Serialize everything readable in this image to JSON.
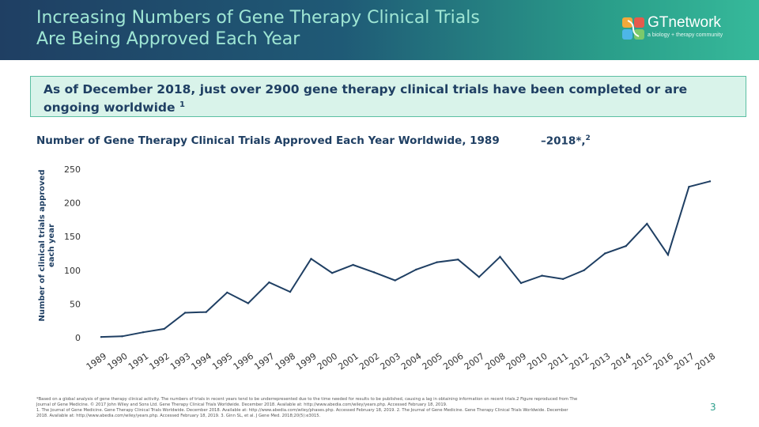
{
  "header": {
    "title_line1": "Increasing Numbers of Gene Therapy Clinical Trials",
    "title_line2": "Are Being Approved Each Year",
    "logo_text": "GTnetwork",
    "logo_tagline": "a biology + therapy community",
    "colors": {
      "dark": "#1f3f63",
      "teal": "#36b99a",
      "title": "#9fe6d4"
    }
  },
  "callout": {
    "text": "As of December 2018, just over 2900 gene therapy clinical trials have been completed or are ongoing worldwide",
    "sup": "1"
  },
  "chart_title": {
    "main": "Number of Gene Therapy Clinical Trials Approved Each Year Worldwide, 1989",
    "end": "–2018*,",
    "sup": "2"
  },
  "chart_data": {
    "type": "line",
    "title": "Number of Gene Therapy Clinical Trials Approved Each Year Worldwide, 1989–2018*,2",
    "xlabel": "",
    "ylabel": "Number of clinical trials approved each year",
    "ylim": [
      0,
      250
    ],
    "yticks": [
      0,
      50,
      100,
      150,
      200,
      250
    ],
    "grid": false,
    "categories": [
      "1989",
      "1990",
      "1991",
      "1992",
      "1993",
      "1994",
      "1995",
      "1996",
      "1997",
      "1998",
      "1999",
      "2000",
      "2001",
      "2002",
      "2003",
      "2004",
      "2005",
      "2006",
      "2007",
      "2008",
      "2009",
      "2010",
      "2011",
      "2012",
      "2013",
      "2014",
      "2015",
      "2016",
      "2017",
      "2018"
    ],
    "values": [
      1,
      2,
      8,
      13,
      37,
      38,
      67,
      51,
      82,
      68,
      117,
      96,
      108,
      97,
      85,
      101,
      112,
      116,
      90,
      120,
      81,
      92,
      87,
      100,
      125,
      136,
      169,
      123,
      224,
      232
    ],
    "line_color": "#1f3f63"
  },
  "footnote": {
    "line1": "*Based on a global analysis of gene therapy clinical activity. The numbers of trials in recent years tend to be underrepresented due to the time needed for results to be published, causing a lag in obtaining information on recent trials.2 Figure reproduced from The",
    "line2": "Journal of Gene Medicine. © 2017 John Wiley and Sons Ltd. Gene Therapy Clinical Trials Worldwide. December 2018. Available at: http://www.abedia.com/wiley/years.php. Accessed February 18, 2019.",
    "line3": "1. The Journal of Gene Medicine. Gene Therapy Clinical Trials Worldwide. December 2018. Available at: http://www.abedia.com/wiley/phases.php. Accessed February 18, 2019. 2. The Journal of Gene Medicine. Gene Therapy Clinical Trials Worldwide. December",
    "line4": "2018. Available at: http://www.abedia.com/wiley/years.php. Accessed February 18, 2019. 3. Ginn SL, et al. J Gene Med. 2018;20(5):e3015."
  },
  "page_number": "3"
}
